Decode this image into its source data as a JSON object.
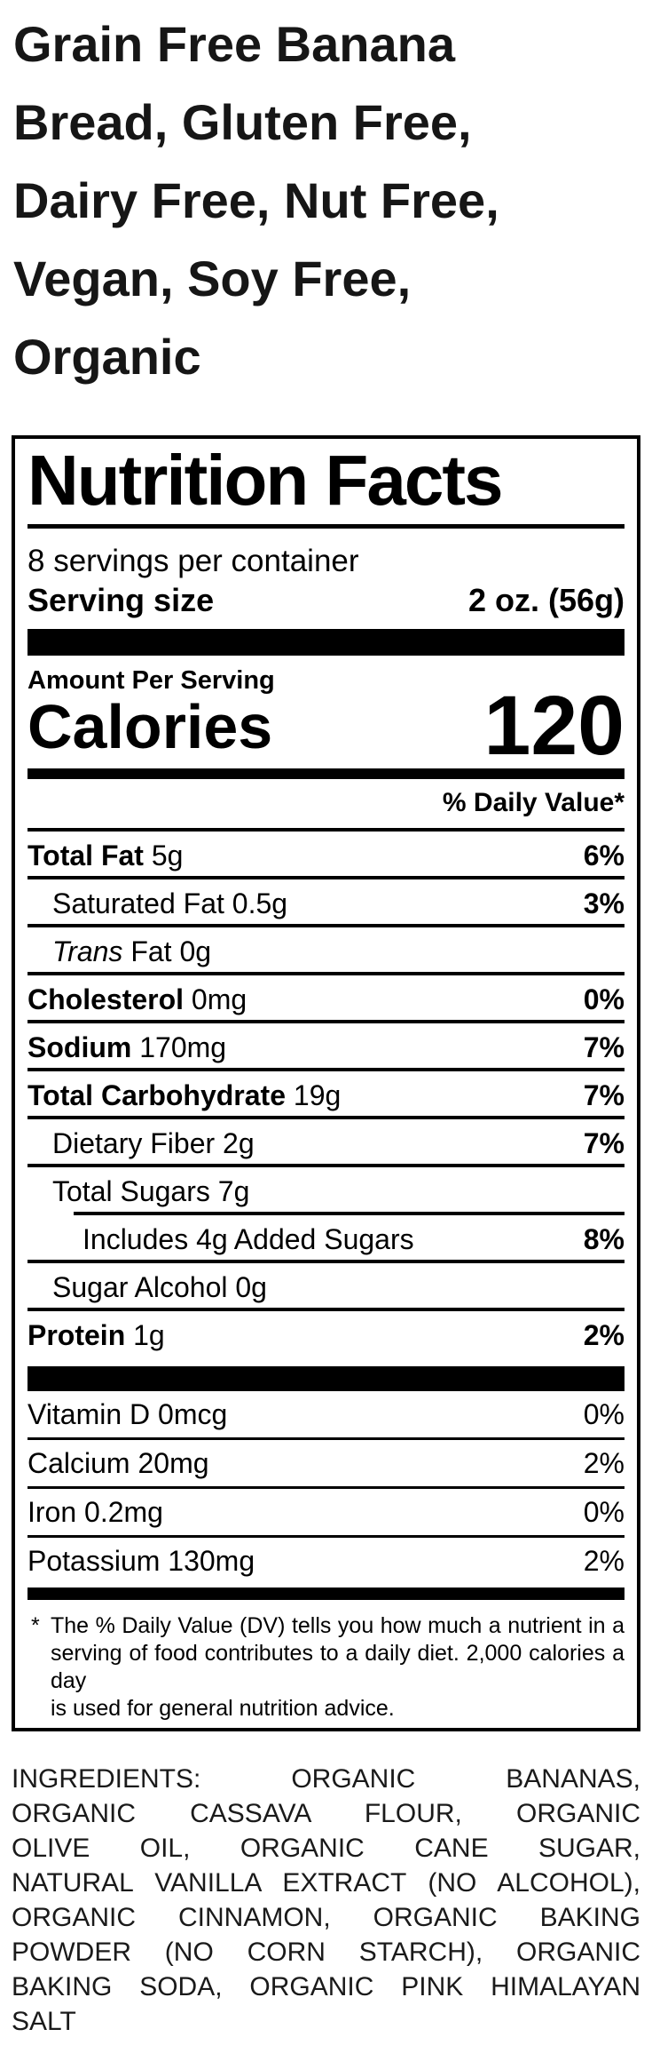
{
  "colors": {
    "label_ink": "#000000",
    "title_ink": "#161616",
    "background": "#ffffff"
  },
  "product_title": {
    "lines": [
      "Grain Free Banana",
      "Bread, Gluten Free,",
      "Dairy Free, Nut Free,",
      "Vegan, Soy Free,",
      "Organic"
    ]
  },
  "nutrition_facts": {
    "title": "Nutrition Facts",
    "servings_per_container": "8 servings per container",
    "serving_size_label": "Serving size",
    "serving_size_value": "2 oz. (56g)",
    "amount_per_serving": "Amount Per Serving",
    "calories_label": "Calories",
    "calories_value": "120",
    "daily_value_header": "% Daily Value*",
    "nutrients": [
      {
        "bold": "Total Fat",
        "rest": "5g",
        "dv": "6%",
        "dv_bold": true,
        "indent": 0
      },
      {
        "plain": "Saturated Fat 0.5g",
        "dv": "3%",
        "dv_bold": true,
        "indent": 1
      },
      {
        "italic": "Trans",
        "plain": "Fat 0g",
        "dv": "",
        "indent": 1
      },
      {
        "bold": "Cholesterol",
        "rest": "0mg",
        "dv": "0%",
        "dv_bold": true,
        "indent": 0
      },
      {
        "bold": "Sodium",
        "rest": "170mg",
        "dv": "7%",
        "dv_bold": true,
        "indent": 0
      },
      {
        "bold": "Total Carbohydrate",
        "rest": "19g",
        "dv": "7%",
        "dv_bold": true,
        "indent": 0
      },
      {
        "plain": "Dietary Fiber 2g",
        "dv": "7%",
        "dv_bold": true,
        "indent": 1
      },
      {
        "plain": "Total Sugars 7g",
        "dv": "",
        "indent": 1
      },
      {
        "plain": "Includes 4g Added Sugars",
        "dv": "8%",
        "dv_bold": true,
        "indent": 2,
        "divider_indent": true
      },
      {
        "plain": "Sugar Alcohol 0g",
        "dv": "",
        "indent": 1
      },
      {
        "bold": "Protein",
        "rest": "1g",
        "dv": "2%",
        "dv_bold": true,
        "indent": 0
      }
    ],
    "micronutrients": [
      {
        "plain": "Vitamin D 0mcg",
        "dv": "0%"
      },
      {
        "plain": "Calcium 20mg",
        "dv": "2%"
      },
      {
        "plain": "Iron 0.2mg",
        "dv": "0%"
      },
      {
        "plain": "Potassium 130mg",
        "dv": "2%"
      }
    ],
    "footnote_marker": "*",
    "footnote_lines": [
      "The % Daily Value (DV) tells you how much a nutrient in a",
      "serving of food contributes to a daily diet. 2,000 calories a day",
      "is used for general nutrition advice."
    ]
  },
  "ingredients": {
    "lines": [
      "INGREDIENTS: ORGANIC BANANAS,",
      "ORGANIC CASSAVA FLOUR, ORGANIC",
      "OLIVE OIL, ORGANIC CANE SUGAR,",
      "NATURAL VANILLA EXTRACT (NO ALCOHOL),",
      "ORGANIC CINNAMON, ORGANIC BAKING",
      "POWDER (NO CORN STARCH), ORGANIC",
      "BAKING SODA, ORGANIC PINK HIMALAYAN",
      "SALT"
    ]
  }
}
